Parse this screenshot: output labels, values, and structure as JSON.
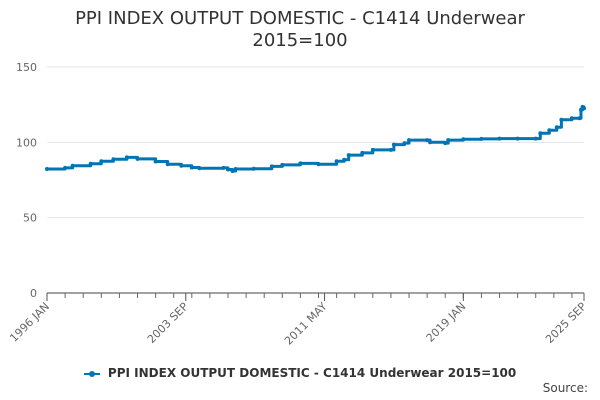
{
  "chart_data": {
    "type": "line",
    "title": "PPI INDEX OUTPUT DOMESTIC - C1414 Underwear 2015=100",
    "title_lines": [
      "PPI INDEX OUTPUT DOMESTIC - C1414 Underwear",
      "2015=100"
    ],
    "x_start": "1996-01",
    "x_end": "2025-09",
    "x_ticks": [
      "1996 JAN",
      "2003 SEP",
      "2011 MAY",
      "2019 JAN",
      "2025 SEP"
    ],
    "ylim": [
      0,
      150
    ],
    "y_ticks": [
      0,
      50,
      100,
      150
    ],
    "grid": true,
    "legend_position": "bottom",
    "series": [
      {
        "name": "PPI INDEX OUTPUT DOMESTIC - C1414 Underwear 2015=100",
        "color": "#0075b4",
        "points": [
          [
            "1996-01",
            82.3
          ],
          [
            "1997-01",
            83.0
          ],
          [
            "1997-06",
            84.5
          ],
          [
            "1998-06",
            85.8
          ],
          [
            "1999-01",
            87.5
          ],
          [
            "1999-09",
            88.8
          ],
          [
            "2000-06",
            90.0
          ],
          [
            "2001-01",
            89.0
          ],
          [
            "2002-01",
            87.3
          ],
          [
            "2002-09",
            85.5
          ],
          [
            "2003-06",
            84.5
          ],
          [
            "2004-01",
            83.3
          ],
          [
            "2004-06",
            82.8
          ],
          [
            "2005-10",
            83.0
          ],
          [
            "2006-01",
            82.0
          ],
          [
            "2006-04",
            81.0
          ],
          [
            "2006-06",
            82.3
          ],
          [
            "2007-06",
            82.5
          ],
          [
            "2008-06",
            84.0
          ],
          [
            "2009-01",
            85.0
          ],
          [
            "2010-01",
            86.0
          ],
          [
            "2011-01",
            85.5
          ],
          [
            "2012-01",
            87.5
          ],
          [
            "2012-06",
            88.5
          ],
          [
            "2012-09",
            91.5
          ],
          [
            "2013-06",
            93.0
          ],
          [
            "2014-01",
            95.0
          ],
          [
            "2015-01",
            95.0
          ],
          [
            "2015-03",
            98.5
          ],
          [
            "2015-10",
            99.5
          ],
          [
            "2016-01",
            101.5
          ],
          [
            "2017-01",
            101.5
          ],
          [
            "2017-03",
            100.0
          ],
          [
            "2018-01",
            99.5
          ],
          [
            "2018-03",
            101.5
          ],
          [
            "2019-01",
            102.0
          ],
          [
            "2020-01",
            102.3
          ],
          [
            "2021-01",
            102.5
          ],
          [
            "2022-01",
            102.5
          ],
          [
            "2023-01",
            102.5
          ],
          [
            "2023-04",
            106.0
          ],
          [
            "2023-10",
            108.0
          ],
          [
            "2024-03",
            110.0
          ],
          [
            "2024-06",
            115.0
          ],
          [
            "2025-01",
            116.0
          ],
          [
            "2025-06",
            116.0
          ],
          [
            "2025-07",
            121.5
          ],
          [
            "2025-08",
            123.5
          ],
          [
            "2025-09",
            122.5
          ]
        ]
      }
    ],
    "source_label": "Source:"
  }
}
